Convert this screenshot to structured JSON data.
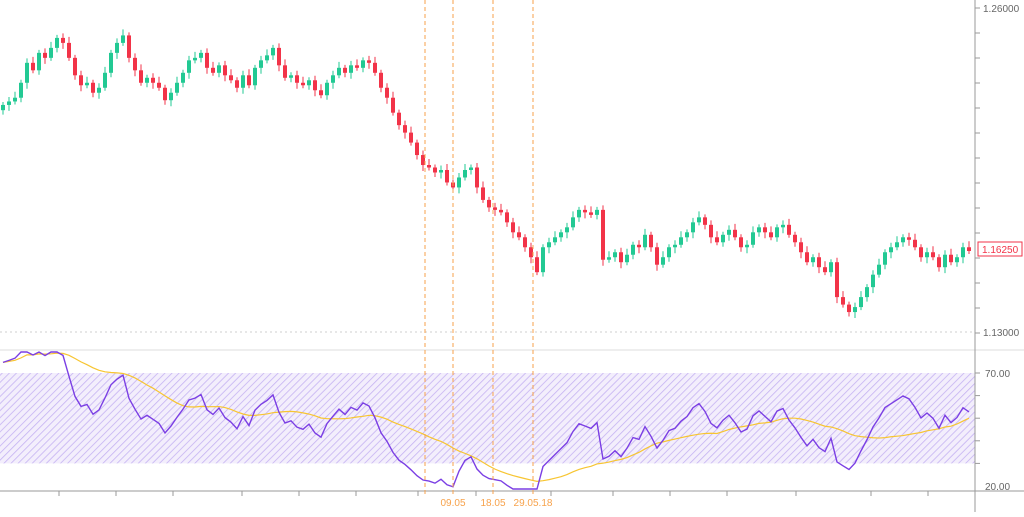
{
  "chart_data": [
    {
      "type": "candlestick",
      "title": "",
      "y_axis": {
        "ticks": [
          "1.26000",
          "1.13000"
        ],
        "range": [
          1.13,
          1.26
        ],
        "side": "right"
      },
      "last_price_label": "1.16250",
      "colors": {
        "up": "#22c993",
        "down": "#f23348",
        "last_price": "#f23348"
      },
      "first_open": 1.219,
      "close": [
        1.2211,
        1.2225,
        1.224,
        1.23,
        1.238,
        1.235,
        1.242,
        1.24,
        1.244,
        1.248,
        1.246,
        1.24,
        1.233,
        1.229,
        1.23,
        1.226,
        1.228,
        1.234,
        1.242,
        1.246,
        1.249,
        1.24,
        1.235,
        1.23,
        1.232,
        1.23,
        1.228,
        1.223,
        1.226,
        1.23,
        1.234,
        1.239,
        1.24,
        1.242,
        1.236,
        1.234,
        1.237,
        1.233,
        1.231,
        1.228,
        1.233,
        1.229,
        1.236,
        1.239,
        1.241,
        1.244,
        1.237,
        1.232,
        1.233,
        1.23,
        1.229,
        1.231,
        1.227,
        1.225,
        1.23,
        1.233,
        1.236,
        1.234,
        1.237,
        1.236,
        1.239,
        1.238,
        1.234,
        1.228,
        1.224,
        1.218,
        1.213,
        1.21,
        1.206,
        1.201,
        1.197,
        1.196,
        1.194,
        1.195,
        1.19,
        1.188,
        1.192,
        1.195,
        1.196,
        1.188,
        1.183,
        1.18,
        1.179,
        1.178,
        1.174,
        1.17,
        1.168,
        1.164,
        1.16,
        1.154,
        1.164,
        1.166,
        1.168,
        1.17,
        1.172,
        1.176,
        1.179,
        1.178,
        1.177,
        1.179,
        1.159,
        1.16,
        1.162,
        1.158,
        1.161,
        1.165,
        1.164,
        1.169,
        1.164,
        1.157,
        1.16,
        1.164,
        1.165,
        1.168,
        1.17,
        1.174,
        1.176,
        1.173,
        1.168,
        1.166,
        1.169,
        1.171,
        1.168,
        1.164,
        1.165,
        1.17,
        1.172,
        1.17,
        1.168,
        1.172,
        1.173,
        1.169,
        1.166,
        1.162,
        1.158,
        1.16,
        1.156,
        1.154,
        1.158,
        1.144,
        1.141,
        1.138,
        1.14,
        1.144,
        1.148,
        1.153,
        1.157,
        1.162,
        1.164,
        1.166,
        1.168,
        1.167,
        1.164,
        1.16,
        1.162,
        1.16,
        1.156,
        1.161,
        1.158,
        1.16,
        1.164,
        1.1625
      ]
    },
    {
      "type": "line",
      "indicator": "RSI",
      "y_axis": {
        "ticks": [
          "70.00",
          "20.00"
        ],
        "range": [
          20,
          70
        ],
        "side": "right"
      },
      "band": [
        30,
        70
      ],
      "rsi_period": 14,
      "signal_period": 20,
      "colors": {
        "rsi": "#7b3fe4",
        "signal": "#f7c531",
        "band": "#b9a2ee"
      }
    }
  ],
  "markers": {
    "color": "#f7a24b",
    "labels": [
      "09.05",
      "18.05",
      "29.05.18"
    ]
  }
}
